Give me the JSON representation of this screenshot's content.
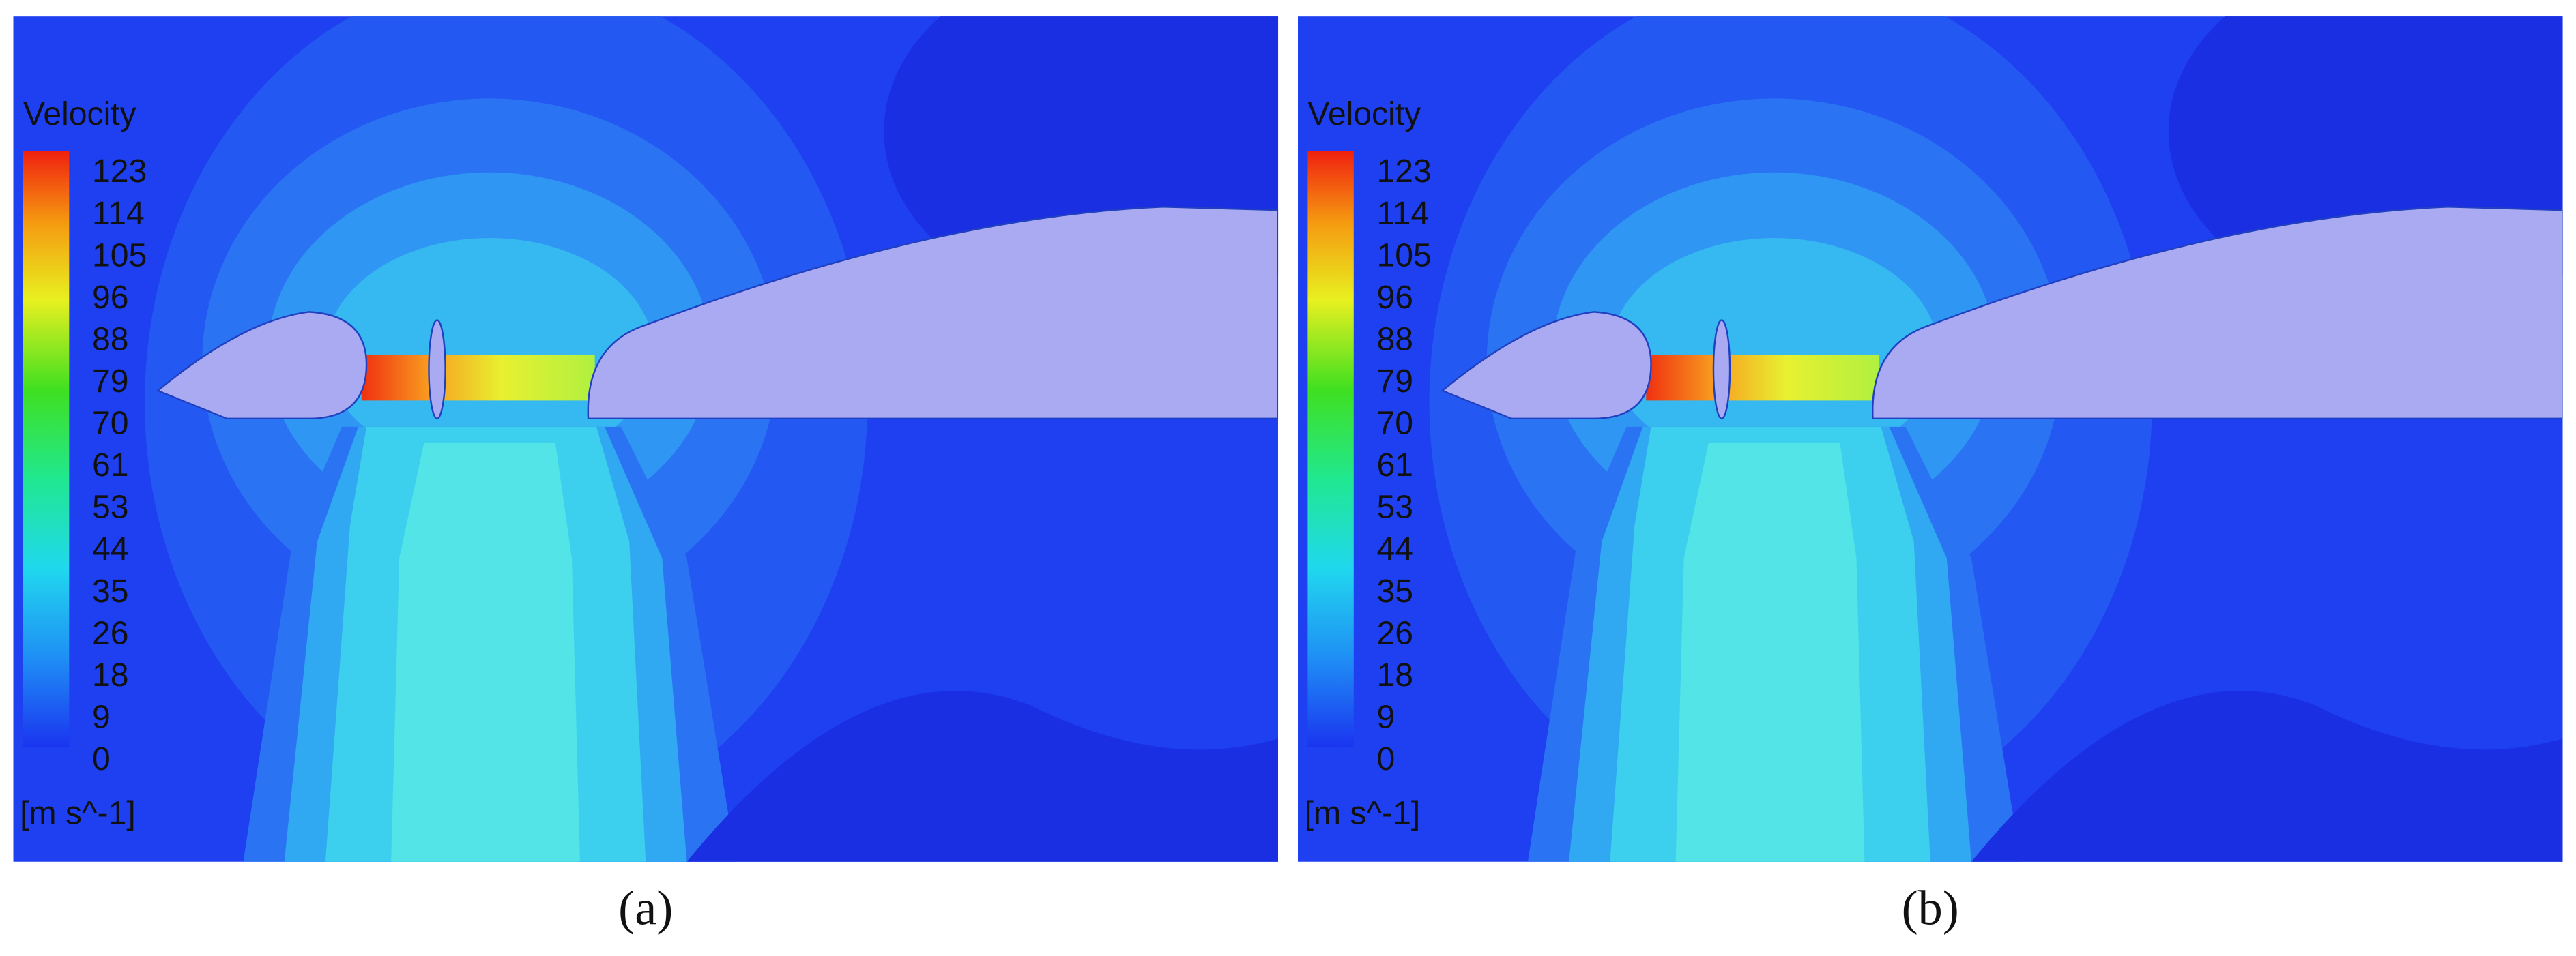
{
  "panels": [
    {
      "legend_title": "Velocity",
      "ticks": [
        123,
        114,
        105,
        96,
        88,
        79,
        70,
        61,
        53,
        44,
        35,
        26,
        18,
        9,
        0
      ],
      "unit": "[m s^-1]",
      "caption": "(a)"
    },
    {
      "legend_title": "Velocity",
      "ticks": [
        123,
        114,
        105,
        96,
        88,
        79,
        70,
        61,
        53,
        44,
        35,
        26,
        18,
        9,
        0
      ],
      "unit": "[m s^-1]",
      "caption": "(b)"
    }
  ]
}
